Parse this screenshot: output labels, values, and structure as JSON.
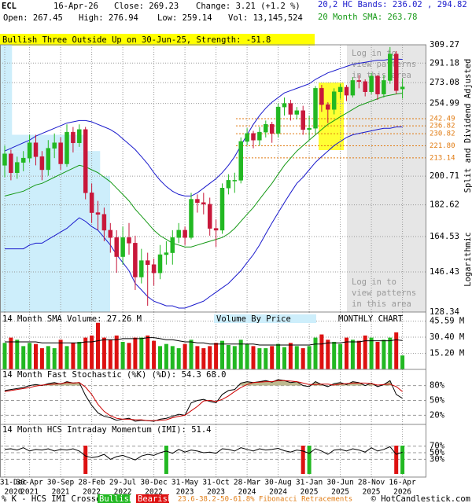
{
  "header": {
    "symbol": "ECL",
    "date": "16-Apr-26",
    "close": "Close: 269.23",
    "change": "Change: 3.21 (+1.2 %)",
    "bands": "20,2 HC Bands: 236.02 , 294.82",
    "open": "Open: 267.45",
    "high": "High: 276.94",
    "low": "Low: 259.14",
    "volume": "Vol: 13,145,524",
    "sma": "20 Month SMA: 263.78",
    "pattern": "Bullish Three Outside Up on 30-Jun-25, Strength: -51.8"
  },
  "chart_data": [
    {
      "type": "candlestick",
      "log_scale": true,
      "note": "Split and Dividend Adjusted",
      "scale_label": "Logarithmic",
      "locked_note": [
        "Log in to",
        "view patterns",
        "in this area"
      ],
      "categories": [
        [
          "31-Dec",
          "2020"
        ],
        null,
        null,
        null,
        [
          "30-Apr",
          "2021"
        ],
        null,
        null,
        null,
        null,
        [
          "30-Sep",
          "2021"
        ],
        null,
        null,
        null,
        null,
        [
          "28-Feb",
          "2022"
        ],
        null,
        null,
        null,
        null,
        [
          "29-Jul",
          "2022"
        ],
        null,
        null,
        null,
        null,
        [
          "30-Dec",
          "2022"
        ],
        null,
        null,
        null,
        null,
        [
          "31-May",
          "2023"
        ],
        null,
        null,
        null,
        null,
        [
          "31-Oct",
          "2023"
        ],
        null,
        null,
        null,
        null,
        [
          "28-Mar",
          "2024"
        ],
        null,
        null,
        null,
        null,
        [
          "30-Aug",
          "2024"
        ],
        null,
        null,
        null,
        null,
        [
          "31-Jan",
          "2025"
        ],
        null,
        null,
        null,
        null,
        [
          "30-Jun",
          "2025"
        ],
        null,
        null,
        null,
        null,
        [
          "28-Nov",
          "2025"
        ],
        null,
        null,
        null,
        null,
        [
          "16-Apr",
          "2026"
        ]
      ],
      "open": [
        208,
        216,
        203,
        210,
        213,
        224,
        214,
        205,
        220,
        224,
        209,
        232,
        224,
        234,
        190,
        178,
        177,
        168,
        164,
        154,
        164,
        161,
        144,
        152,
        150,
        146,
        155,
        156,
        164,
        168,
        164,
        186,
        184,
        183,
        169,
        168,
        193,
        198,
        198,
        225,
        231,
        226,
        232,
        238,
        231,
        252,
        255,
        246,
        249,
        234,
        235,
        268,
        254,
        250,
        265,
        269,
        262,
        275,
        274,
        265,
        279,
        263,
        275,
        300,
        267.45
      ],
      "high": [
        222,
        219,
        214,
        218,
        230,
        230,
        218,
        226,
        231,
        228,
        238,
        236,
        238,
        236,
        196,
        185,
        181,
        172,
        168,
        170,
        172,
        165,
        158,
        156,
        153,
        160,
        162,
        168,
        172,
        170,
        190,
        189,
        190,
        187,
        174,
        196,
        202,
        203,
        228,
        235,
        233,
        236,
        241,
        240,
        255,
        260,
        258,
        252,
        253,
        245,
        270,
        271,
        256,
        268,
        272,
        271,
        278,
        280,
        276,
        282,
        280,
        280,
        307,
        303,
        276.94
      ],
      "low": [
        200,
        198,
        199,
        204,
        210,
        208,
        198,
        201,
        213,
        205,
        207,
        217,
        221,
        186,
        172,
        168,
        162,
        156,
        146,
        150,
        155,
        138,
        141,
        131,
        140,
        143,
        150,
        150,
        161,
        160,
        163,
        178,
        177,
        165,
        159,
        166,
        189,
        190,
        196,
        222,
        220,
        222,
        228,
        224,
        228,
        245,
        241,
        242,
        230,
        226,
        231,
        248,
        239,
        246,
        259,
        257,
        260,
        268,
        261,
        263,
        258,
        260,
        272,
        263,
        259.14
      ],
      "close": [
        216,
        203,
        210,
        213,
        224,
        214,
        205,
        220,
        224,
        209,
        232,
        224,
        234,
        190,
        178,
        177,
        168,
        164,
        154,
        164,
        161,
        144,
        152,
        150,
        146,
        155,
        156,
        164,
        168,
        164,
        186,
        184,
        183,
        169,
        168,
        193,
        198,
        198,
        225,
        231,
        226,
        232,
        238,
        231,
        252,
        255,
        246,
        249,
        234,
        235,
        268,
        254,
        250,
        265,
        269,
        262,
        275,
        274,
        265,
        279,
        263,
        275,
        300,
        266,
        269.23
      ],
      "up_color": "#22b822",
      "down_color": "#c8173a",
      "overlays": [
        {
          "color": "#1a1acc",
          "values": [
            218,
            220,
            222,
            224,
            226,
            229,
            231,
            233,
            235,
            237,
            239,
            240,
            241,
            241,
            240,
            238,
            236,
            234,
            231,
            227,
            223,
            219,
            214,
            209,
            203,
            198,
            194,
            191,
            189,
            188,
            188,
            190,
            193,
            196,
            199,
            203,
            208,
            214,
            222,
            230,
            238,
            245,
            251,
            256,
            260,
            264,
            266,
            268,
            270,
            272,
            276,
            279,
            282,
            284,
            286,
            288,
            290,
            291,
            292,
            293,
            294,
            294,
            295,
            295,
            294.82
          ]
        },
        {
          "color": "#1a1acc",
          "values": [
            158,
            158,
            158,
            158,
            160,
            161,
            161,
            163,
            165,
            167,
            169,
            172,
            175,
            173,
            170,
            168,
            164,
            160,
            155,
            151,
            147,
            141,
            138,
            135,
            133,
            132,
            131,
            131,
            130,
            130,
            131,
            132,
            133,
            135,
            137,
            139,
            141,
            144,
            147,
            151,
            155,
            160,
            166,
            172,
            178,
            184,
            190,
            196,
            200,
            205,
            210,
            214,
            218,
            222,
            225,
            228,
            230,
            231,
            232,
            233,
            234,
            235,
            235,
            236,
            236.02
          ]
        },
        {
          "color": "#159915",
          "values": [
            188,
            189,
            190,
            191,
            193,
            195,
            196,
            198,
            200,
            202,
            204,
            206,
            208,
            207,
            205,
            203,
            200,
            197,
            193,
            189,
            185,
            180,
            176,
            172,
            168,
            165,
            163,
            161,
            160,
            159,
            159,
            160,
            161,
            162,
            163,
            164,
            166,
            169,
            173,
            177,
            181,
            186,
            191,
            196,
            202,
            208,
            213,
            218,
            222,
            226,
            230,
            234,
            238,
            241,
            244,
            247,
            250,
            253,
            255,
            257,
            259,
            261,
            262,
            263,
            263.78
          ]
        }
      ],
      "ylim": [
        128.34,
        309.27
      ],
      "yticks": [
        309.27,
        291.18,
        273.08,
        254.99,
        200.71,
        182.62,
        164.53,
        146.43,
        128.34
      ],
      "fib_ticks": [
        242.49,
        236.82,
        230.82,
        {
          "value": 221.8,
          "label": "221.80"
        },
        213.14
      ],
      "fib_color": "#e07a10",
      "volume_by_price": {
        "bins": [
          128.34,
          164.53,
          200.71,
          218,
          230,
          309.27
        ],
        "values": [
          110,
          110,
          100,
          85,
          12
        ],
        "color": "#cdeefb"
      }
    },
    {
      "type": "bar",
      "title": "14 Month SMA Volume: 27.26 M",
      "subtitle": "Volume By Price",
      "chart_label": "MONTHLY CHART",
      "values": [
        25,
        30,
        28,
        22,
        25,
        24,
        20,
        22,
        20,
        28,
        22,
        25,
        26,
        30,
        32,
        44,
        30,
        28,
        32,
        26,
        25,
        30,
        30,
        32,
        27,
        22,
        24,
        22,
        20,
        24,
        28,
        22,
        20,
        22,
        25,
        27,
        23,
        22,
        28,
        24,
        22,
        20,
        20,
        22,
        24,
        21,
        25,
        22,
        20,
        22,
        30,
        33,
        28,
        26,
        24,
        30,
        28,
        27,
        32,
        30,
        26,
        28,
        30,
        35,
        13.15
      ],
      "sma_values": [
        26,
        26,
        26,
        26,
        26,
        26,
        25,
        25,
        25,
        25,
        25,
        25,
        25,
        26,
        26,
        27,
        28,
        28,
        28,
        29,
        29,
        29,
        29,
        30,
        30,
        29,
        28,
        28,
        27,
        26,
        26,
        25,
        25,
        24,
        24,
        24,
        24,
        24,
        24,
        24,
        24,
        23,
        23,
        23,
        23,
        23,
        23,
        23,
        23,
        23,
        24,
        24,
        25,
        25,
        25,
        26,
        26,
        26,
        27,
        27,
        27,
        27,
        27,
        28,
        27.26
      ],
      "sma_color": "#000000",
      "up_color": "#22b822",
      "down_color": "#dd1111",
      "ylim": [
        0,
        49
      ],
      "yticks": [
        {
          "value": 45.59,
          "label": "45.59 M"
        },
        {
          "value": 30.4,
          "label": "30.40 M"
        },
        {
          "value": 15.2,
          "label": "15.20 M"
        }
      ]
    },
    {
      "type": "line",
      "title": "14 Month Fast Stochastic (%K) (%D): 54.3 68.0",
      "series": [
        {
          "color": "#000000",
          "values": [
            70,
            72,
            74,
            76,
            80,
            82,
            80,
            84,
            86,
            83,
            88,
            85,
            86,
            60,
            40,
            25,
            18,
            15,
            10,
            12,
            14,
            8,
            10,
            9,
            8,
            12,
            14,
            18,
            22,
            20,
            45,
            50,
            52,
            48,
            45,
            62,
            70,
            72,
            85,
            88,
            86,
            88,
            90,
            87,
            92,
            90,
            86,
            88,
            80,
            78,
            88,
            82,
            78,
            84,
            86,
            82,
            88,
            86,
            80,
            85,
            78,
            82,
            90,
            62,
            54.3
          ]
        },
        {
          "color": "#cc0000",
          "values": [
            68,
            70,
            72,
            74,
            76,
            79,
            81,
            82,
            83,
            84,
            86,
            85,
            86,
            77,
            62,
            42,
            28,
            19,
            14,
            12,
            12,
            11,
            11,
            9,
            9,
            10,
            11,
            15,
            18,
            20,
            29,
            38,
            49,
            50,
            48,
            52,
            59,
            68,
            76,
            82,
            86,
            87,
            88,
            88,
            90,
            90,
            89,
            88,
            85,
            82,
            82,
            83,
            83,
            81,
            83,
            84,
            85,
            85,
            85,
            84,
            81,
            82,
            83,
            78,
            68.0
          ]
        }
      ],
      "fill_color": "#bdb98f",
      "ylim": [
        0,
        100
      ],
      "yticks": [
        {
          "value": 80,
          "label": "80%"
        },
        {
          "value": 50,
          "label": "50%"
        },
        {
          "value": 20,
          "label": "20%"
        }
      ]
    },
    {
      "type": "line",
      "title": "14 Month HCS Intraday Momentum (IMI): 51.4",
      "series": [
        {
          "color": "#000000",
          "values": [
            60,
            62,
            58,
            65,
            55,
            60,
            58,
            62,
            55,
            60,
            58,
            62,
            55,
            40,
            35,
            38,
            45,
            30,
            38,
            42,
            35,
            28,
            40,
            45,
            42,
            50,
            55,
            48,
            60,
            52,
            58,
            55,
            50,
            52,
            48,
            62,
            60,
            55,
            65,
            60,
            55,
            62,
            58,
            60,
            63,
            56,
            52,
            58,
            55,
            48,
            62,
            55,
            45,
            58,
            60,
            55,
            62,
            58,
            52,
            65,
            55,
            60,
            68,
            45,
            51.4
          ]
        }
      ],
      "signals": [
        null,
        null,
        null,
        null,
        null,
        null,
        null,
        null,
        null,
        null,
        null,
        null,
        null,
        "bearish",
        null,
        null,
        null,
        null,
        null,
        null,
        null,
        null,
        null,
        null,
        null,
        null,
        "bullish",
        null,
        null,
        null,
        null,
        null,
        null,
        null,
        null,
        null,
        null,
        null,
        null,
        null,
        null,
        null,
        null,
        null,
        null,
        null,
        null,
        null,
        "bearish",
        "bullish",
        null,
        null,
        null,
        null,
        null,
        null,
        null,
        null,
        null,
        null,
        null,
        null,
        null,
        "bearish",
        "bullish"
      ],
      "bullish_color": "#22b822",
      "bearish_color": "#dd1111",
      "ylim": [
        0,
        100
      ],
      "yticks": [
        {
          "value": 70,
          "label": "70%"
        },
        {
          "value": 50,
          "label": "50%"
        },
        {
          "value": 30,
          "label": "30%"
        }
      ]
    }
  ],
  "footer": {
    "crossover": "% K - HCS IMI Crossover,",
    "bullish": "Bullish",
    "bearish": "Bearish",
    "fibonacci": "23.6-38.2-50-61.8% Fibonacci Retracements",
    "copyright": "© HotCandlestick.com"
  }
}
